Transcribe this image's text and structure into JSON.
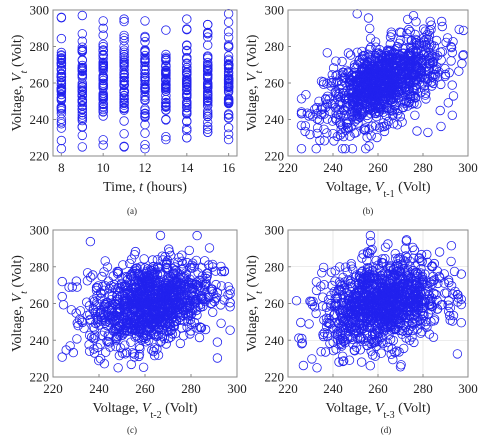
{
  "colors": {
    "marker": "#2222ee",
    "frame": "#8a8a8a"
  },
  "chart_data": [
    {
      "type": "scatter",
      "panel_label": "(a)",
      "title": "",
      "xlabel": "Time, t (hours)",
      "ylabel": "Voltage, V_t (Volt)",
      "xlim": [
        7.6,
        16.4
      ],
      "ylim": [
        220,
        300
      ],
      "xticks": [
        8,
        10,
        12,
        14,
        16
      ],
      "yticks": [
        220,
        240,
        260,
        280,
        300
      ],
      "grid": false,
      "marker": "open-circle",
      "series": [
        {
          "x_hours": [
            8,
            9,
            10,
            11,
            12,
            13,
            14,
            15,
            16
          ],
          "y_ranges_volt": [
            [
              224,
              296
            ],
            [
              225,
              297
            ],
            [
              226,
              294
            ],
            [
              225,
              295
            ],
            [
              224,
              294
            ],
            [
              229,
              289
            ],
            [
              230,
              295
            ],
            [
              233,
              292
            ],
            [
              229,
              298
            ]
          ]
        }
      ]
    },
    {
      "type": "scatter",
      "panel_label": "(b)",
      "title": "",
      "xlabel": "Voltage, V_t-1 (Volt)",
      "ylabel": "Voltage, V_t (Volt)",
      "xlim": [
        220,
        300
      ],
      "ylim": [
        220,
        300
      ],
      "xticks": [
        220,
        240,
        260,
        280,
        300
      ],
      "yticks": [
        220,
        240,
        260,
        280,
        300
      ],
      "grid": false,
      "marker": "open-circle",
      "cloud": {
        "x_center": 262,
        "y_center": 260,
        "x_spread": 13,
        "y_spread": 12,
        "correlation": 0.55,
        "x_range": [
          226,
          298
        ],
        "y_range": [
          224,
          298
        ]
      }
    },
    {
      "type": "scatter",
      "panel_label": "(c)",
      "title": "",
      "xlabel": "Voltage, V_t-2 (Volt)",
      "ylabel": "Voltage, V_t (Volt)",
      "xlim": [
        220,
        300
      ],
      "ylim": [
        220,
        300
      ],
      "xticks": [
        220,
        240,
        260,
        280,
        300
      ],
      "yticks": [
        220,
        240,
        260,
        280,
        300
      ],
      "grid": false,
      "marker": "open-circle",
      "cloud": {
        "x_center": 262,
        "y_center": 260,
        "x_spread": 13,
        "y_spread": 12,
        "correlation": 0.3,
        "x_range": [
          224,
          297
        ],
        "y_range": [
          225,
          297
        ]
      }
    },
    {
      "type": "scatter",
      "panel_label": "(d)",
      "title": "",
      "xlabel": "Voltage, V_t-3 (Volt)",
      "ylabel": "Voltage, V_t (Volt)",
      "xlim": [
        220,
        300
      ],
      "ylim": [
        220,
        300
      ],
      "xticks": [
        220,
        240,
        260,
        280,
        300
      ],
      "yticks": [
        220,
        240,
        260,
        280,
        300
      ],
      "grid": true,
      "marker": "open-circle",
      "cloud": {
        "x_center": 262,
        "y_center": 260,
        "x_spread": 13,
        "y_spread": 12,
        "correlation": 0.25,
        "x_range": [
          223,
          297
        ],
        "y_range": [
          225,
          297
        ]
      }
    }
  ]
}
